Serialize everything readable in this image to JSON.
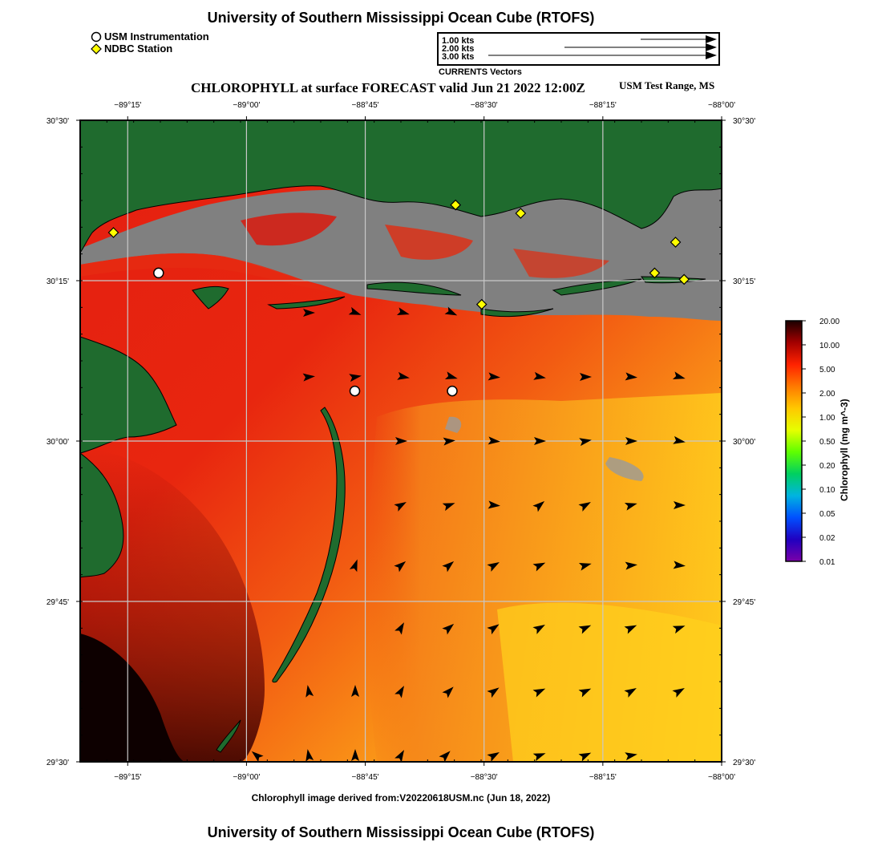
{
  "header": {
    "title": "University of Southern Mississippi Ocean Cube (RTOFS)",
    "subtitle": "CHLOROPHYLL at surface FORECAST valid Jun 21 2022 12:00Z",
    "range_label": "USM Test Range, MS"
  },
  "legend": {
    "usm_label": "USM Instrumentation",
    "ndbc_label": "NDBC Station"
  },
  "vectors": {
    "scale": [
      {
        "label": "1.00 kts",
        "speed_kts": 1.0
      },
      {
        "label": "2.00 kts",
        "speed_kts": 2.0
      },
      {
        "label": "3.00 kts",
        "speed_kts": 3.0
      }
    ],
    "caption": "CURRENTS Vectors"
  },
  "map": {
    "lon_ticks": [
      "−89°15'",
      "−89°00'",
      "−88°45'",
      "−88°30'",
      "−88°15'",
      "−88°00'"
    ],
    "lat_ticks": [
      "30°30'",
      "30°15'",
      "30°00'",
      "29°45'",
      "29°30'"
    ],
    "lon_range": [
      -89.35,
      -88.0
    ],
    "lat_range": [
      29.5,
      30.5
    ],
    "usm_stations": [
      {
        "lon": -89.185,
        "lat": 30.262
      },
      {
        "lon": -88.772,
        "lat": 30.078
      },
      {
        "lon": -88.567,
        "lat": 30.078
      }
    ],
    "ndbc_stations": [
      {
        "lon": -89.28,
        "lat": 30.325
      },
      {
        "lon": -88.56,
        "lat": 30.368
      },
      {
        "lon": -88.423,
        "lat": 30.355
      },
      {
        "lon": -88.505,
        "lat": 30.213
      },
      {
        "lon": -88.141,
        "lat": 30.262
      },
      {
        "lon": -88.097,
        "lat": 30.31
      },
      {
        "lon": -88.079,
        "lat": 30.252
      }
    ]
  },
  "colorbar": {
    "label": "Chlorophyll (mg m^-3)",
    "ticks": [
      "20.00",
      "10.00",
      "5.00",
      "2.00",
      "1.00",
      "0.50",
      "0.20",
      "0.10",
      "0.05",
      "0.02",
      "0.01"
    ],
    "colors": [
      "#1a0000",
      "#a40000",
      "#ff2200",
      "#ff7a00",
      "#ffc800",
      "#e6ff00",
      "#5fff00",
      "#00d060",
      "#00b4e0",
      "#0050ff",
      "#2000c0",
      "#7a00a8"
    ]
  },
  "footer": {
    "source": "Chlorophyll image derived from:V20220618USM.nc (Jun 18, 2022)",
    "title": "University of Southern Mississippi Ocean Cube (RTOFS)"
  }
}
